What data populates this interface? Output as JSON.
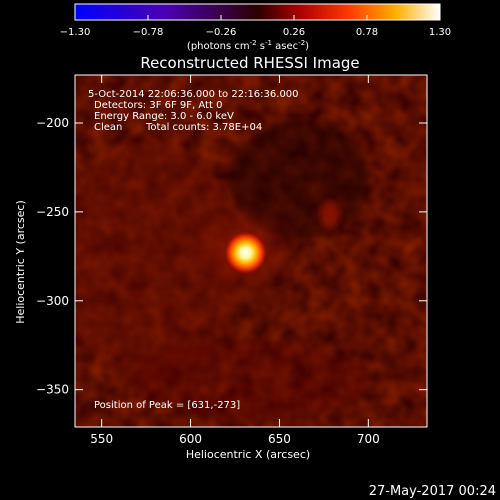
{
  "colorbar": {
    "ticks": [
      "-1.30",
      "-0.78",
      "-0.26",
      "0.26",
      "0.78",
      "1.30"
    ],
    "tick_values": [
      -1.3,
      -0.78,
      -0.26,
      0.26,
      0.78,
      1.3
    ],
    "range": [
      -1.3,
      1.3
    ],
    "unit_prefix": "(photons cm",
    "unit_exp1": "-2",
    "unit_mid": " s",
    "unit_exp2": "-1",
    "unit_mid2": " asec",
    "unit_exp3": "-2",
    "unit_suffix": ")"
  },
  "title": "Reconstructed RHESSI Image",
  "info": {
    "line1": "5-Oct-2014 22:06:36.000 to 22:16:36.000",
    "line2": "Detectors: 3F 6F 9F, Att 0",
    "line3": "Energy Range: 3.0 - 6.0 keV",
    "line4_a": "Clean",
    "line4_b": "Total counts: 3.78E+04"
  },
  "peak_label": "Position of Peak = [631,-273]",
  "footer_date": "27-May-2017 00:24",
  "chart_data": {
    "type": "heatmap",
    "title": "Reconstructed RHESSI Image",
    "xlabel": "Heliocentric X (arcsec)",
    "ylabel": "Heliocentric Y (arcsec)",
    "xlim": [
      535,
      733
    ],
    "ylim": [
      -371,
      -173
    ],
    "x_ticks": [
      550,
      600,
      650,
      700
    ],
    "y_ticks": [
      -200,
      -250,
      -300,
      -350
    ],
    "peak": {
      "x": 631,
      "y": -273,
      "value": 1.3
    },
    "colormap": "red-temperature",
    "colors": {
      "neg_low": "#0000ff",
      "neg_mid": "#5a00c8",
      "mid": "#000000",
      "pos_mid": "#ff3300",
      "pos_high": "#ffcc00",
      "pos_max": "#ffffff"
    }
  }
}
